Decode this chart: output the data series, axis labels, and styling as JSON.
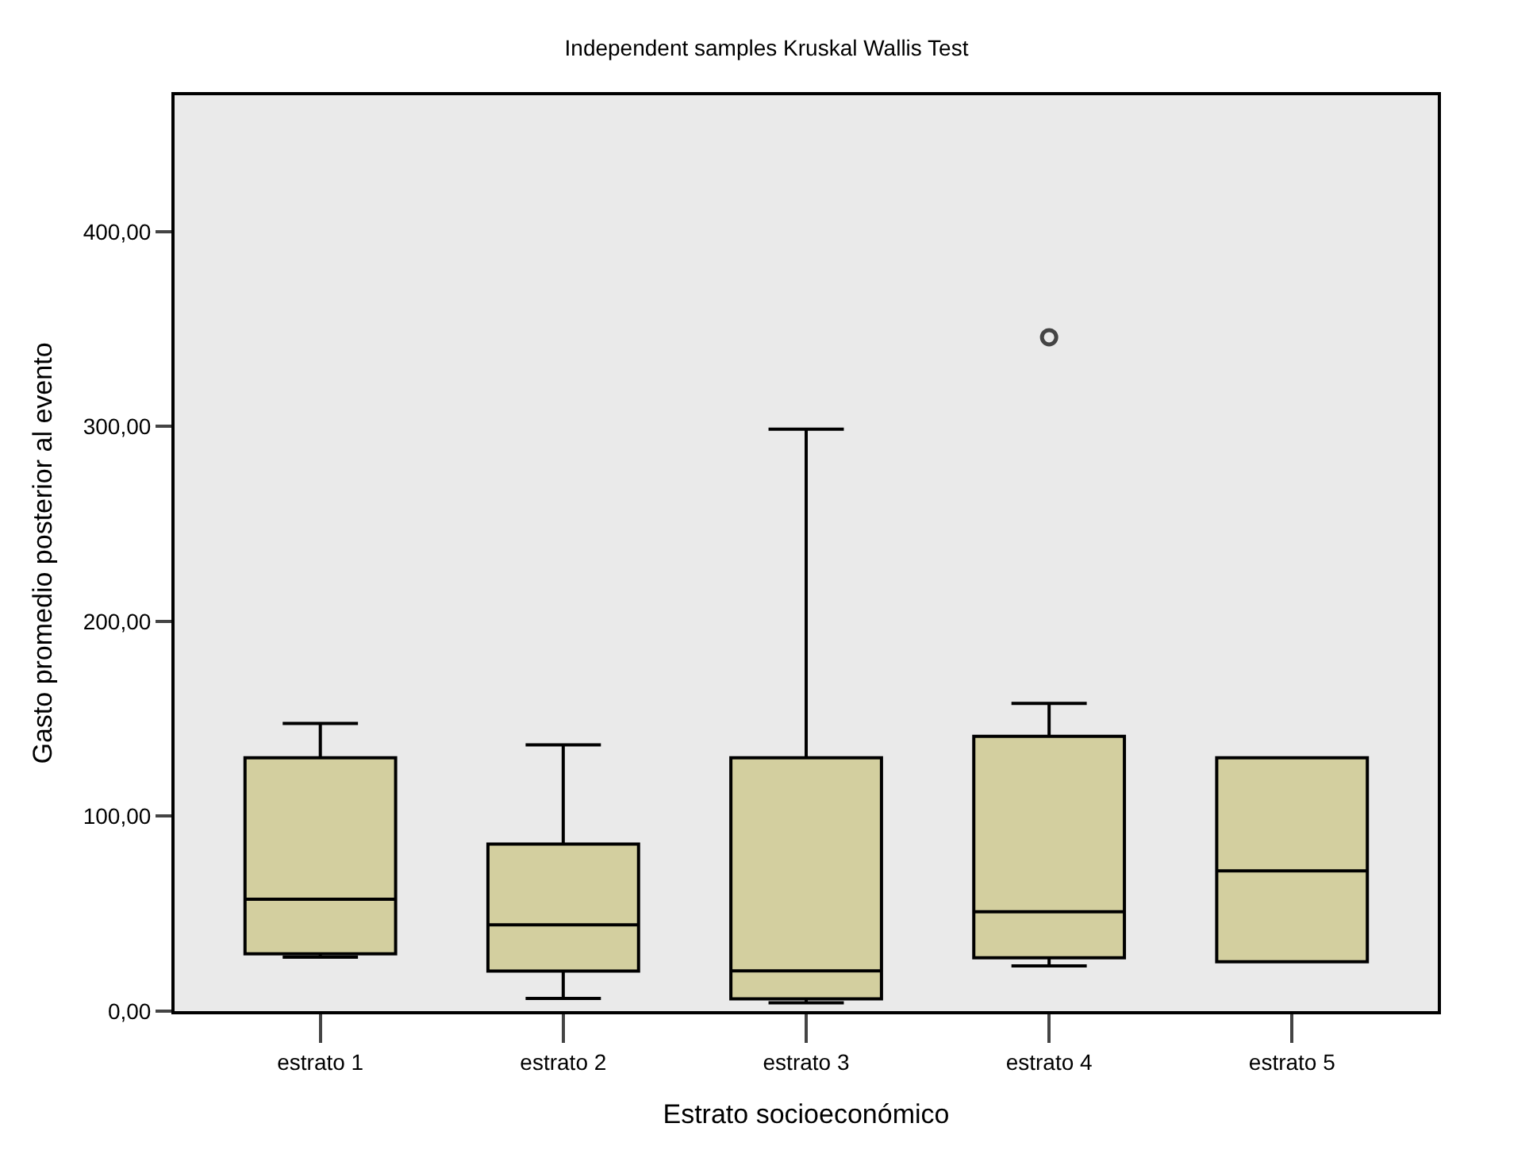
{
  "chart_data": {
    "type": "box",
    "title": "Independent samples Kruskal Wallis Test",
    "xlabel": "Estrato socioeconómico",
    "ylabel": "Gasto promedio posterior al evento",
    "categories": [
      "estrato 1",
      "estrato 2",
      "estrato 3",
      "estrato 4",
      "estrato 5"
    ],
    "color": "#d3cf9f",
    "boxes": [
      {
        "low": 27.7,
        "q1": 29.4,
        "median": 57.4,
        "q3": 130,
        "high": 147.6
      },
      {
        "low": 6.5,
        "q1": 20.6,
        "median": 44.3,
        "q3": 85.7,
        "high": 136.6
      },
      {
        "low": 4.3,
        "q1": 6.3,
        "median": 20.7,
        "q3": 130,
        "high": 298.6
      },
      {
        "low": 23.2,
        "q1": 27.4,
        "median": 51,
        "q3": 141,
        "high": 157.9,
        "outliers": [
          345.8
        ]
      },
      {
        "low": 25.4,
        "q1": 25.4,
        "median": 72,
        "q3": 130,
        "high": 130
      }
    ],
    "ylim": [
      0,
      470
    ],
    "yticks": [
      {
        "value": 0,
        "label": "0,00"
      },
      {
        "value": 100,
        "label": "100,00"
      },
      {
        "value": 200,
        "label": "200,00"
      },
      {
        "value": 300,
        "label": "300,00"
      },
      {
        "value": 400,
        "label": "400,00"
      }
    ],
    "grid": false
  }
}
